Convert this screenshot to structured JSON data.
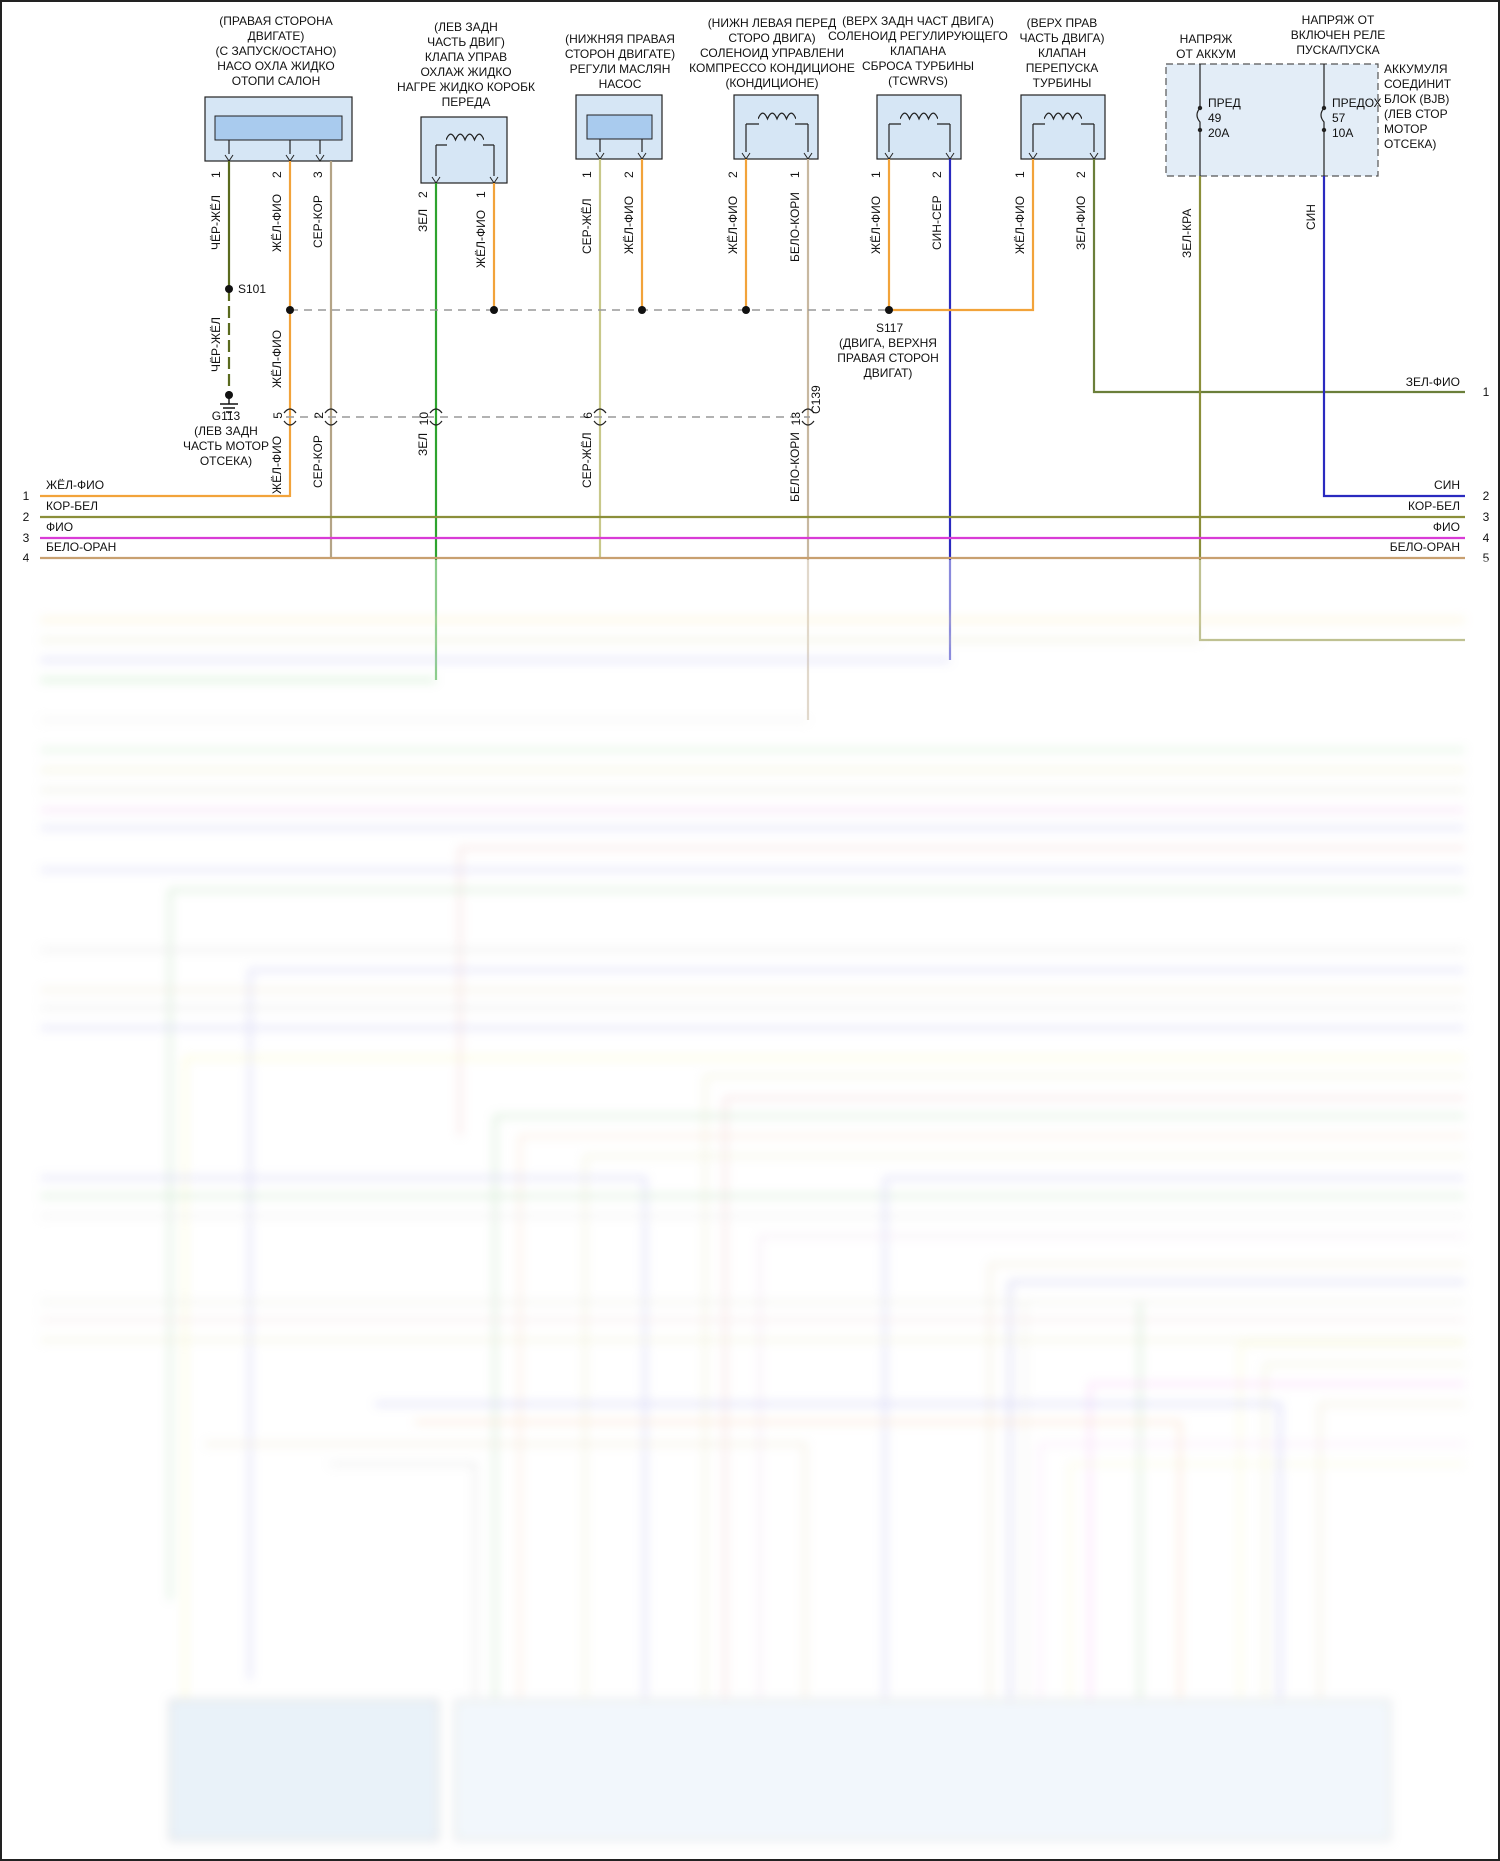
{
  "colors": {
    "background": "#ffffff",
    "component_fill": "#d6e6f5",
    "component_inner": "#a9cbee",
    "wire_yellow_violet": "#f2a33a",
    "wire_brown_white": "#8b8f3a",
    "wire_violet": "#d93bd6",
    "wire_green": "#2ea32e",
    "wire_blue": "#2a2abf",
    "wire_olive": "#6b7f3a",
    "wire_black_yellow": "#5a6a1e",
    "wire_grey_brown": "#b4a486",
    "wire_grey_yellow": "#c8c88a",
    "wire_white_brown": "#c8b8a0"
  },
  "components": {
    "coolant_pump": {
      "label": [
        "(ПРАВАЯ СТОРОНА",
        "ДВИГАТЕ)",
        "(С ЗАПУСК/ОСТАНО)",
        "НАСО ОХЛА ЖИДКО",
        "ОТОПИ САЛОН"
      ],
      "pins": [
        "1",
        "2",
        "3"
      ],
      "wires": [
        "ЧЁР-ЖЁЛ",
        "ЖЁЛ-ФИО",
        "СЕР-КОР"
      ]
    },
    "trans_coolant_valve": {
      "label": [
        "(ЛЕВ ЗАДН",
        "ЧАСТЬ ДВИГ)",
        "КЛАПА УПРАВ",
        "ОХЛАЖ ЖИДКО",
        "НАГРЕ ЖИДКО КОРОБК",
        "ПЕРЕДА"
      ],
      "pins": [
        "2",
        "1"
      ],
      "wires": [
        "ЗЕЛ",
        "ЖЁЛ-ФИО"
      ]
    },
    "oil_pump": {
      "label": [
        "(НИЖНЯЯ ПРАВАЯ",
        "СТОРОН ДВИГАТЕ)",
        "РЕГУЛИ МАСЛЯН",
        "НАСОС"
      ],
      "pins": [
        "1",
        "2"
      ],
      "wires": [
        "СЕР-ЖЁЛ",
        "ЖЁЛ-ФИО"
      ]
    },
    "ac_solenoid": {
      "label": [
        "(НИЖН ЛЕВАЯ ПЕРЕД",
        "СТОРО ДВИГА)",
        "СОЛЕНОИД УПРАВЛЕНИ",
        "КОМПРЕССО КОНДИЦИОНЕ",
        "(КОНДИЦИОНЕ)"
      ],
      "pins": [
        "2",
        "1"
      ],
      "wires": [
        "ЖЁЛ-ФИО",
        "БЕЛО-КОРИ"
      ]
    },
    "tcwrvs": {
      "label": [
        "(ВЕРХ ЗАДН ЧАСТ ДВИГА)",
        "СОЛЕНОИД РЕГУЛИРУЮЩЕГО",
        "КЛАПАНА",
        "СБРОСА ТУРБИНЫ",
        "(TCWRVS)"
      ],
      "pins": [
        "1",
        "2"
      ],
      "wires": [
        "ЖЁЛ-ФИО",
        "СИН-СЕР"
      ]
    },
    "wastegate": {
      "label": [
        "(ВЕРХ ПРАВ",
        "ЧАСТЬ ДВИГА)",
        "КЛАПАН",
        "ПЕРЕПУСКА",
        "ТУРБИНЫ"
      ],
      "pins": [
        "1",
        "2"
      ],
      "wires": [
        "ЖЁЛ-ФИО",
        "ЗЕЛ-ФИО"
      ]
    },
    "battery_voltage": {
      "label": [
        "НАПРЯЖ",
        "ОТ АККУМ"
      ],
      "wire": "ЗЕЛ-КРА"
    },
    "start_relay_voltage": {
      "label": [
        "НАПРЯЖ ОТ",
        "ВКЛЮЧЕН РЕЛЕ",
        "ПУСКА/ПУСКА"
      ],
      "wire": "СИН"
    },
    "bjb": {
      "label": [
        "АККУМУЛЯ",
        "СОЕДИНИТ",
        "БЛОК (BJB)",
        "(ЛЕВ СТОР",
        "МОТОР",
        "ОТСЕКА)"
      ],
      "fuse_left": [
        "ПРЕД",
        "49",
        "20A"
      ],
      "fuse_right": [
        "ПРЕДОХ",
        "57",
        "10A"
      ]
    }
  },
  "splices": {
    "s101": "S101",
    "s117": "S117",
    "s117_desc": [
      "(ДВИГА, ВЕРХНЯ",
      "ПРАВАЯ СТОРОН",
      "ДВИГАТ)"
    ]
  },
  "ground": {
    "name": "G113",
    "desc": [
      "(ЛЕВ ЗАДН",
      "ЧАСТЬ МОТОР",
      "ОТСЕКА)"
    ],
    "wire": "ЧЁР-ЖЁЛ"
  },
  "connector_c139": {
    "name": "C139",
    "pins": [
      "5",
      "2",
      "10",
      "6",
      "13"
    ],
    "wires_below": [
      "ЖЁЛ-ФИО",
      "СЕР-КОР",
      "ЗЕЛ",
      "СЕР-ЖЁЛ",
      "БЕЛО-КОРИ"
    ],
    "wire_left_jumper": "ЖЁЛ-ФИО"
  },
  "output_right": {
    "wire": "ЗЕЛ-ФИО",
    "pin": "1"
  },
  "bus_left": [
    {
      "pin": "1",
      "label": "ЖЁЛ-ФИО"
    },
    {
      "pin": "2",
      "label": "КОР-БЕЛ"
    },
    {
      "pin": "3",
      "label": "ФИО"
    },
    {
      "pin": "4",
      "label": "БЕЛО-ОРАН"
    }
  ],
  "bus_right": [
    {
      "pin": "2",
      "label": "СИН"
    },
    {
      "pin": "3",
      "label": "КОР-БЕЛ"
    },
    {
      "pin": "4",
      "label": "ФИО"
    },
    {
      "pin": "5",
      "label": "БЕЛО-ОРАН"
    }
  ]
}
